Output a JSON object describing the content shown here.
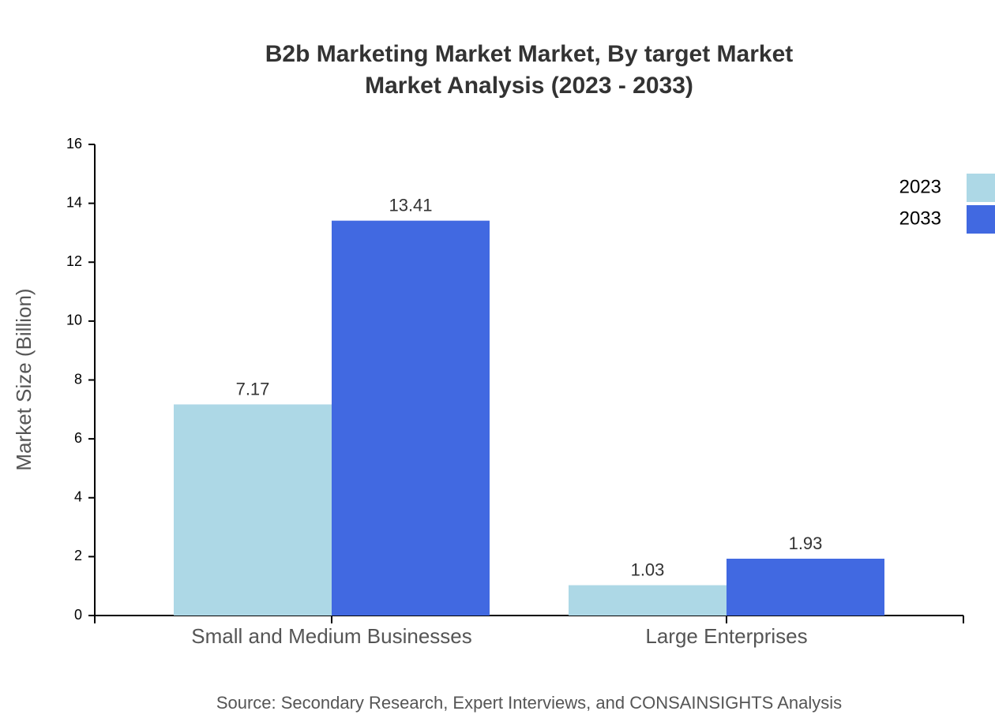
{
  "chart_data": {
    "type": "bar",
    "title": [
      "B2b Marketing Market Market, By target Market",
      "Market Analysis (2023 - 2033)"
    ],
    "y_label": "Market Size (Billion)",
    "source": "Source: Secondary Research, Expert Interviews, and CONSAINSIGHTS Analysis",
    "categories": [
      "Small and Medium Businesses",
      "Large Enterprises"
    ],
    "series": [
      {
        "name": "2023",
        "color": "#add8e6",
        "values": [
          7.17,
          1.03
        ]
      },
      {
        "name": "2033",
        "color": "#4169e1",
        "values": [
          13.41,
          1.93
        ]
      }
    ],
    "ylim": [
      0,
      16
    ],
    "yticks": [
      0,
      2,
      4,
      6,
      8,
      10,
      12,
      14,
      16
    ]
  }
}
